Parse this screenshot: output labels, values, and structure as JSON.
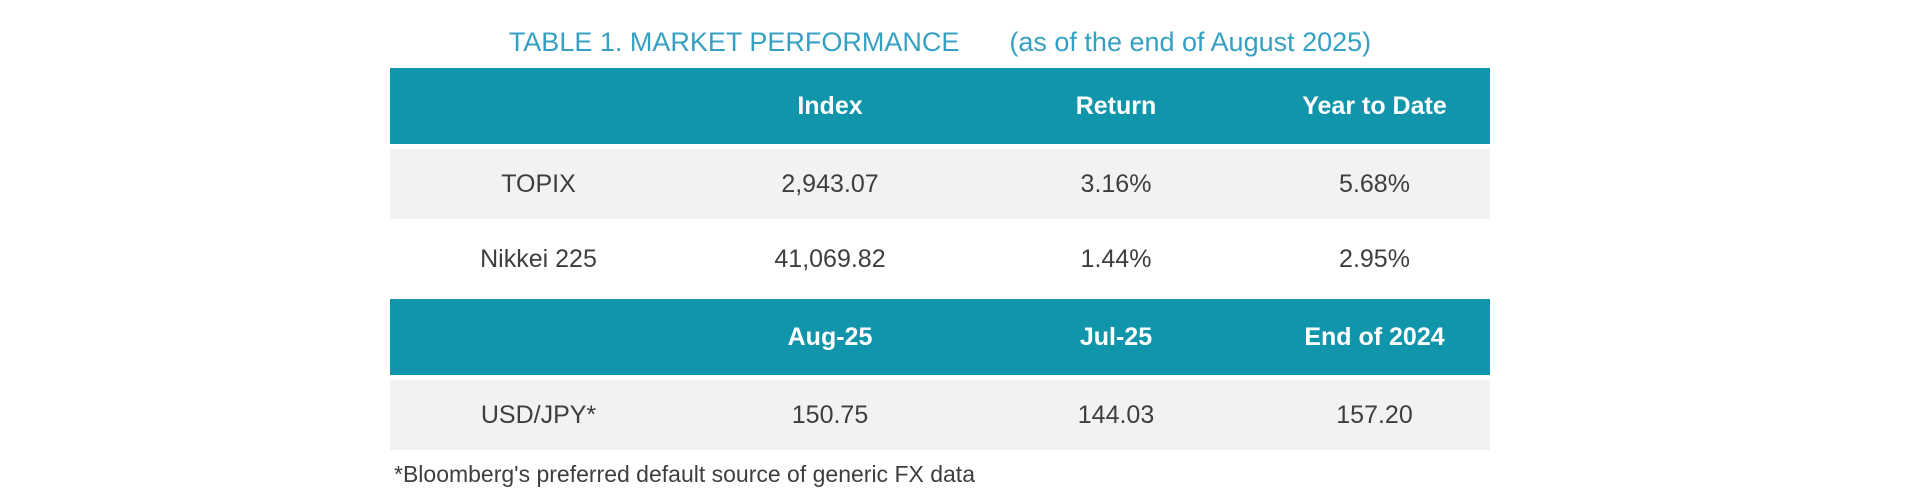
{
  "title": {
    "main": "TABLE 1. MARKET PERFORMANCE",
    "suffix": "(as of the end of August 2025)"
  },
  "colors": {
    "header_bg": "#1095ab",
    "header_text": "#ffffff",
    "title_text": "#35a0c3",
    "row_alt_bg": "#f2f2f2",
    "body_text": "#3e3e3e"
  },
  "market_table": {
    "headers": [
      "",
      "Index",
      "Return",
      "Year to Date"
    ],
    "rows": [
      {
        "label": "TOPIX",
        "index": "2,943.07",
        "return": "3.16%",
        "ytd": "5.68%"
      },
      {
        "label": "Nikkei 225",
        "index": "41,069.82",
        "return": "1.44%",
        "ytd": "2.95%"
      }
    ]
  },
  "fx_table": {
    "headers": [
      "",
      "Aug-25",
      "Jul-25",
      "End of 2024"
    ],
    "rows": [
      {
        "label": "USD/JPY*",
        "aug": "150.75",
        "jul": "144.03",
        "end_2024": "157.20"
      }
    ]
  },
  "footnote": "*Bloomberg's preferred default source of generic FX data"
}
